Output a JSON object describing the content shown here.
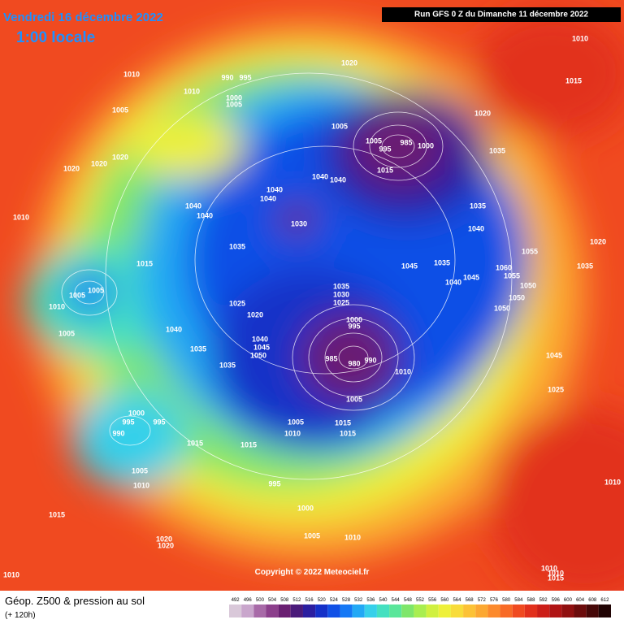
{
  "header": {
    "date": "Vendredi 16 décembre 2022",
    "time_label": "1:00 locale",
    "run": "Run GFS 0 Z du Dimanche 11 décembre 2022"
  },
  "footer": {
    "title": "Géop. Z500 & pression au sol",
    "forecast": "(+ 120h)",
    "copyright": "Copyright © 2022 Meteociel.fr"
  },
  "color_scale": {
    "values": [
      492,
      496,
      500,
      504,
      508,
      512,
      516,
      520,
      524,
      528,
      532,
      536,
      540,
      544,
      548,
      552,
      556,
      560,
      564,
      568,
      572,
      576,
      580,
      584,
      588,
      592,
      596,
      600,
      604,
      608,
      612
    ],
    "colors": [
      "#d9c8d9",
      "#c9a6cc",
      "#a86aa8",
      "#8c3f8c",
      "#6a1f72",
      "#4a1a7a",
      "#2b1ea0",
      "#1430c8",
      "#1050e6",
      "#1578f5",
      "#22a8f5",
      "#36d0ea",
      "#44e0c0",
      "#5ae69a",
      "#7ee66a",
      "#a8ee50",
      "#d0f040",
      "#eef03a",
      "#f8dc3a",
      "#fcc236",
      "#fca832",
      "#fc8a2c",
      "#f86a26",
      "#f04a20",
      "#e2301c",
      "#cc1e18",
      "#b01414",
      "#901010",
      "#6c0c0c",
      "#460808",
      "#200404"
    ]
  },
  "pressure_labels": [
    1010,
    1015,
    1020,
    1010,
    990,
    995,
    1010,
    1000,
    1005,
    1005,
    1020,
    1005,
    1005,
    985,
    995,
    1000,
    1035,
    1020,
    1020,
    1020,
    1015,
    1040,
    1040,
    1040,
    1040,
    1035,
    1040,
    1040,
    1030,
    1040,
    1010,
    1035,
    1055,
    1020,
    1015,
    1045,
    1035,
    1035,
    1060,
    1055,
    1040,
    1045,
    1050,
    1035,
    1030,
    1025,
    1005,
    1005,
    1050,
    1050,
    1010,
    1025,
    1020,
    1000,
    995,
    1040,
    1005,
    1040,
    1045,
    1050,
    985,
    990,
    980,
    1035,
    1045,
    1010,
    1035,
    1025,
    1005,
    1000,
    995,
    995,
    990,
    1005,
    1015,
    1015,
    1010,
    1015,
    1015,
    1005,
    1010,
    995,
    1010,
    1000,
    1015,
    1020,
    1020,
    1005,
    1010,
    1010,
    1010,
    1015,
    1010
  ]
}
